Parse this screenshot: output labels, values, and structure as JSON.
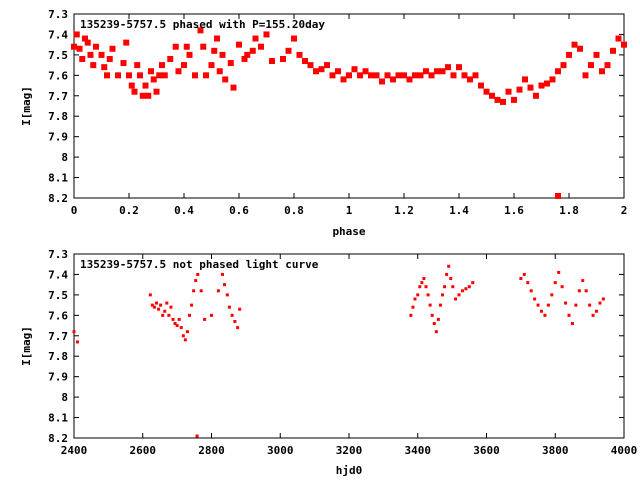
{
  "chart_data": [
    {
      "type": "scatter",
      "title": "135239-5757.5 phased with P=155.20day",
      "xlabel": "phase",
      "ylabel": "I[mag]",
      "xlim": [
        0,
        2
      ],
      "ylim": [
        8.2,
        7.3
      ],
      "y_inverted": true,
      "grid": false,
      "marker_color": "#ff0000",
      "marker": "filled-square",
      "xticks": [
        "0",
        "0.2",
        "0.4",
        "0.6",
        "0.8",
        "1",
        "1.2",
        "1.4",
        "1.6",
        "1.8",
        "2"
      ],
      "yticks": [
        "7.3",
        "7.4",
        "7.5",
        "7.6",
        "7.7",
        "7.8",
        "7.9",
        "8",
        "8.1",
        "8.2"
      ],
      "x": [
        0.0,
        0.01,
        0.02,
        0.03,
        0.04,
        0.05,
        0.06,
        0.07,
        0.08,
        0.1,
        0.11,
        0.12,
        0.13,
        0.14,
        0.16,
        0.18,
        0.19,
        0.2,
        0.21,
        0.22,
        0.23,
        0.24,
        0.25,
        0.26,
        0.27,
        0.28,
        0.29,
        0.3,
        0.31,
        0.32,
        0.33,
        0.35,
        0.37,
        0.38,
        0.4,
        0.41,
        0.42,
        0.44,
        0.46,
        0.47,
        0.48,
        0.5,
        0.51,
        0.52,
        0.53,
        0.54,
        0.55,
        0.57,
        0.58,
        0.6,
        0.62,
        0.63,
        0.65,
        0.66,
        0.68,
        0.7,
        0.72,
        0.76,
        0.78,
        0.8,
        0.82,
        0.84,
        0.86,
        0.88,
        0.9,
        0.92,
        0.94,
        0.96,
        0.98,
        1.0,
        1.02,
        1.04,
        1.06,
        1.08,
        1.1,
        1.12,
        1.14,
        1.16,
        1.18,
        1.2,
        1.22,
        1.24,
        1.26,
        1.28,
        1.3,
        1.32,
        1.34,
        1.36,
        1.38,
        1.4,
        1.42,
        1.44,
        1.46,
        1.48,
        1.5,
        1.52,
        1.54,
        1.56,
        1.58,
        1.6,
        1.62,
        1.64,
        1.66,
        1.68,
        1.7,
        1.72,
        1.74,
        1.76,
        1.78,
        1.8,
        1.82,
        1.84,
        1.86,
        1.88,
        1.9,
        1.92,
        1.94,
        1.96,
        1.98,
        2.0
      ],
      "y": [
        7.46,
        7.4,
        7.47,
        7.52,
        7.42,
        7.44,
        7.5,
        7.55,
        7.46,
        7.5,
        7.56,
        7.6,
        7.52,
        7.47,
        7.6,
        7.54,
        7.44,
        7.6,
        7.65,
        7.68,
        7.55,
        7.6,
        7.7,
        7.65,
        7.7,
        7.58,
        7.62,
        7.68,
        7.6,
        7.55,
        7.6,
        7.52,
        7.46,
        7.58,
        7.55,
        7.46,
        7.5,
        7.6,
        7.38,
        7.46,
        7.6,
        7.55,
        7.48,
        7.42,
        7.58,
        7.5,
        7.62,
        7.54,
        7.66,
        7.45,
        7.52,
        7.5,
        7.48,
        7.42,
        7.46,
        7.4,
        7.53,
        7.52,
        7.48,
        7.42,
        7.5,
        7.53,
        7.55,
        7.58,
        7.57,
        7.55,
        7.6,
        7.58,
        7.62,
        7.6,
        7.57,
        7.6,
        7.58,
        7.6,
        7.6,
        7.63,
        7.6,
        7.62,
        7.6,
        7.6,
        7.62,
        7.6,
        7.6,
        7.58,
        7.6,
        7.58,
        7.58,
        7.56,
        7.6,
        7.56,
        7.6,
        7.62,
        7.6,
        7.65,
        7.68,
        7.7,
        7.72,
        7.73,
        7.68,
        7.72,
        7.67,
        7.62,
        7.66,
        7.7,
        7.65,
        7.64,
        7.62,
        7.58,
        7.55,
        7.5,
        7.45,
        7.47,
        7.6,
        7.55,
        7.5,
        7.58,
        7.55,
        7.48,
        7.42,
        7.45
      ],
      "outliers": [
        {
          "x": 1.76,
          "y": 8.19
        }
      ]
    },
    {
      "type": "scatter",
      "title": "135239-5757.5 not phased light curve",
      "xlabel": "hjd0",
      "ylabel": "I[mag]",
      "xlim": [
        2400,
        4000
      ],
      "ylim": [
        8.2,
        7.3
      ],
      "y_inverted": true,
      "grid": false,
      "marker_color": "#ff0000",
      "marker": "small-filled-square",
      "xticks": [
        "2400",
        "2600",
        "2800",
        "3000",
        "3200",
        "3400",
        "3600",
        "3800",
        "4000"
      ],
      "yticks": [
        "7.3",
        "7.4",
        "7.5",
        "7.6",
        "7.7",
        "7.8",
        "7.9",
        "8",
        "8.1",
        "8.2"
      ],
      "x": [
        2400,
        2410,
        2622,
        2628,
        2634,
        2640,
        2646,
        2652,
        2658,
        2664,
        2670,
        2676,
        2682,
        2688,
        2694,
        2700,
        2706,
        2712,
        2718,
        2724,
        2730,
        2736,
        2742,
        2748,
        2754,
        2760,
        2770,
        2780,
        2800,
        2820,
        2832,
        2838,
        2846,
        2852,
        2860,
        2868,
        2876,
        2882,
        3380,
        3386,
        3392,
        3400,
        3406,
        3412,
        3418,
        3424,
        3430,
        3436,
        3442,
        3448,
        3454,
        3460,
        3466,
        3472,
        3478,
        3484,
        3490,
        3496,
        3502,
        3510,
        3520,
        3530,
        3540,
        3550,
        3560,
        3700,
        3710,
        3720,
        3730,
        3740,
        3750,
        3760,
        3770,
        3780,
        3790,
        3800,
        3810,
        3820,
        3830,
        3840,
        3850,
        3860,
        3870,
        3880,
        3890,
        3900,
        3910,
        3920,
        3930,
        3940
      ],
      "y": [
        7.68,
        7.73,
        7.5,
        7.55,
        7.56,
        7.54,
        7.57,
        7.55,
        7.6,
        7.58,
        7.54,
        7.6,
        7.56,
        7.62,
        7.64,
        7.65,
        7.62,
        7.66,
        7.7,
        7.72,
        7.68,
        7.6,
        7.55,
        7.48,
        7.43,
        7.4,
        7.48,
        7.62,
        7.6,
        7.48,
        7.4,
        7.45,
        7.5,
        7.56,
        7.6,
        7.63,
        7.66,
        7.57,
        7.6,
        7.56,
        7.52,
        7.5,
        7.46,
        7.44,
        7.42,
        7.46,
        7.5,
        7.55,
        7.6,
        7.64,
        7.68,
        7.62,
        7.55,
        7.5,
        7.46,
        7.4,
        7.36,
        7.42,
        7.46,
        7.52,
        7.5,
        7.48,
        7.47,
        7.46,
        7.44,
        7.42,
        7.4,
        7.44,
        7.48,
        7.52,
        7.55,
        7.58,
        7.6,
        7.55,
        7.5,
        7.44,
        7.39,
        7.46,
        7.54,
        7.6,
        7.64,
        7.55,
        7.48,
        7.43,
        7.48,
        7.55,
        7.6,
        7.58,
        7.54,
        7.52
      ],
      "outliers": [
        {
          "x": 2758,
          "y": 8.19
        }
      ]
    }
  ]
}
